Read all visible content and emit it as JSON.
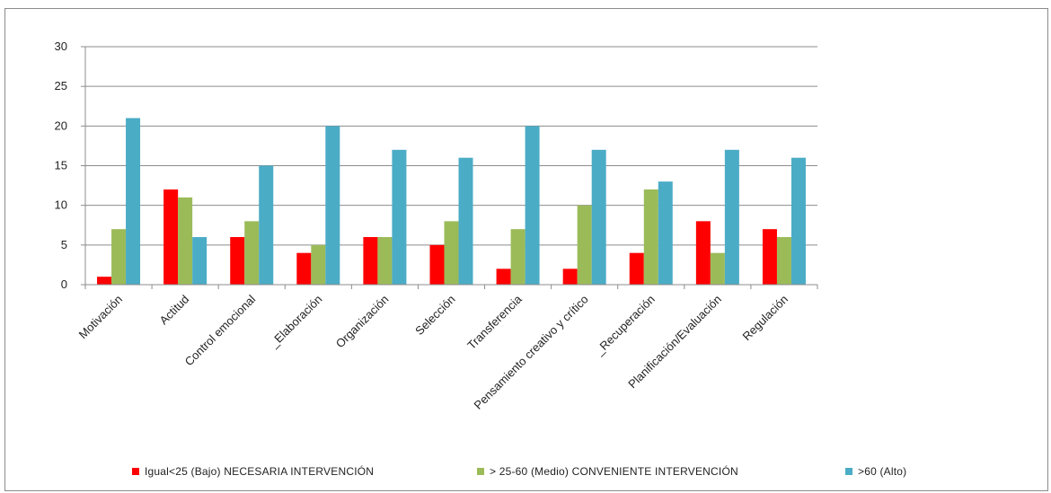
{
  "chart_data": {
    "type": "bar",
    "categories": [
      "Motivación",
      "Actitud",
      "Control emocional",
      "_Elaboración",
      "Organización",
      "Selección",
      "Transferencia",
      "Pensamiento creativo y crítico",
      "_Recuperación",
      "Planificación/Evaluación",
      "Regulación"
    ],
    "series": [
      {
        "name": "Igual<25 (Bajo) NECESARIA INTERVENCIÓN",
        "color": "#ff0000",
        "values": [
          1,
          12,
          6,
          4,
          6,
          5,
          2,
          2,
          4,
          8,
          7
        ]
      },
      {
        "name": "> 25-60 (Medio) CONVENIENTE INTERVENCIÓN",
        "color": "#9bbb59",
        "values": [
          7,
          11,
          8,
          5,
          6,
          8,
          7,
          10,
          12,
          4,
          6
        ]
      },
      {
        "name": ">60 (Alto)",
        "color": "#4bacc6",
        "values": [
          21,
          6,
          15,
          20,
          17,
          16,
          20,
          17,
          13,
          17,
          16
        ]
      }
    ],
    "ylim": [
      0,
      30
    ],
    "yticks": [
      0,
      5,
      10,
      15,
      20,
      25,
      30
    ],
    "grid": true,
    "legend_position": "bottom",
    "title": "",
    "xlabel": "",
    "ylabel": ""
  }
}
